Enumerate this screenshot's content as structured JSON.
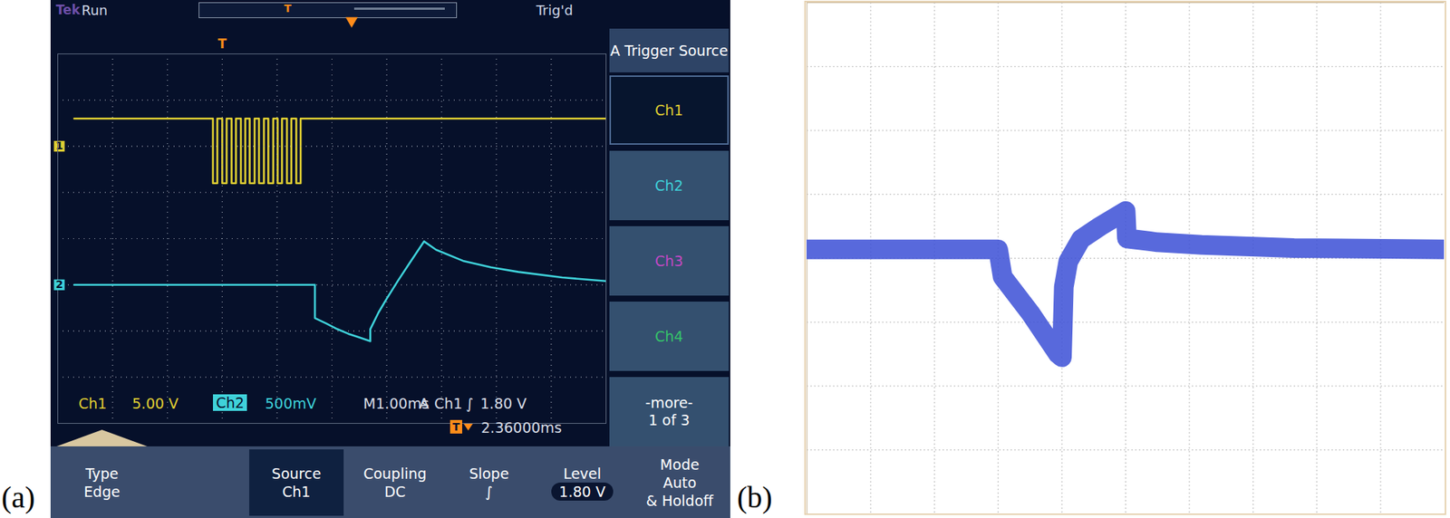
{
  "chart_data": [
    {
      "type": "line",
      "title": "(a)",
      "xlim": [
        -3,
        7
      ],
      "xticks": [
        -3,
        -2,
        -1,
        0,
        1,
        2,
        3,
        4,
        5,
        6,
        7
      ],
      "ylim": [
        -30,
        10
      ],
      "yticks": [
        -30,
        -25,
        -20,
        -15,
        -10,
        -5,
        0,
        5,
        10
      ],
      "grid": true,
      "tick_labels": false,
      "trigger_x": 0,
      "expansion_x": 2.36,
      "series": [
        {
          "name": "1",
          "color": "#e0cf32",
          "x": [
            -2.7,
            -0.17,
            -0.17,
            -0.09,
            -0.09,
            0,
            0,
            0.08,
            0.08,
            0.17,
            0.17,
            0.25,
            0.25,
            0.34,
            0.34,
            0.42,
            0.42,
            0.5,
            0.5,
            0.59,
            0.59,
            0.67,
            0.67,
            0.76,
            0.76,
            0.84,
            0.84,
            0.93,
            0.93,
            1.01,
            1.01,
            1.09,
            1.09,
            1.18,
            1.18,
            1.26,
            1.26,
            1.35,
            1.35,
            1.43,
            1.43,
            7
          ],
          "values": [
            3,
            3,
            -4,
            -4,
            3,
            3,
            -4,
            -4,
            3,
            3,
            -4,
            -4,
            3,
            3,
            -4,
            -4,
            3,
            3,
            -4,
            -4,
            3,
            3,
            -4,
            -4,
            3,
            3,
            -4,
            -4,
            3,
            3,
            -4,
            -4,
            3,
            3,
            -4,
            -4,
            3,
            3,
            -4,
            -4,
            3,
            3
          ]
        }
      ],
      "annotations": {
        "brand": "Tek",
        "state": "Run",
        "trigger_status": "Trig'd",
        "trigger_marker": "T",
        "menu_title": "A Trigger Source",
        "menu_items": [
          "Ch1",
          "Ch2",
          "Ch3",
          "Ch4"
        ],
        "menu_more": [
          "-more-",
          "1 of 3"
        ],
        "readout_ch1": [
          "Ch1",
          "5.00 V"
        ],
        "readout_ch2": [
          "Ch2",
          "500mV"
        ],
        "readout_time": "M1.00ms",
        "readout_trigger": [
          "A",
          "Ch1",
          "∫",
          "1.80 V"
        ],
        "readout_delay": "2.36000ms",
        "buttons": [
          [
            "Type",
            "Edge"
          ],
          [
            "Source",
            "Ch1"
          ],
          [
            "Coupling",
            "DC"
          ],
          [
            "Slope",
            "∫"
          ],
          [
            "Level",
            "1.80 V"
          ],
          [
            "Mode",
            "Auto",
            "& Holdoff"
          ]
        ]
      }
    },
    {
      "type": "line",
      "xlim": [
        -3,
        7
      ],
      "xticks": [
        -3,
        -2,
        -1,
        0,
        1,
        2,
        3,
        4,
        5,
        6,
        7
      ],
      "ylim": [
        -1.5,
        2.5
      ],
      "yticks": [
        -1.5,
        -1,
        -0.5,
        0,
        0.5,
        1,
        1.5,
        2,
        2.5
      ],
      "grid": true,
      "tick_labels": false,
      "series": [
        {
          "name": "2",
          "color": "#3fd2da",
          "x": [
            -2.7,
            1.69,
            1.69,
            1.9,
            2.1,
            2.3,
            2.5,
            2.7,
            2.7,
            2.85,
            3.0,
            3.2,
            3.4,
            3.68,
            3.9,
            4.39,
            4.9,
            5.4,
            6.2,
            7.0
          ],
          "values": [
            0,
            0,
            -0.36,
            -0.42,
            -0.48,
            -0.53,
            -0.57,
            -0.61,
            -0.48,
            -0.3,
            -0.15,
            0.04,
            0.22,
            0.47,
            0.38,
            0.26,
            0.19,
            0.14,
            0.08,
            0.04
          ]
        }
      ]
    },
    {
      "type": "line",
      "title": "(b)",
      "xlim": [
        0,
        10
      ],
      "xticks": [
        0,
        1,
        2,
        3,
        4,
        5,
        6,
        7,
        8,
        9,
        10
      ],
      "ylim": [
        -4,
        4
      ],
      "yticks": [
        -4,
        -3,
        -2,
        -1,
        0,
        1,
        2,
        3,
        4
      ],
      "grid": true,
      "tick_labels": false,
      "series": [
        {
          "color": "#3b4fd6",
          "x": [
            0,
            3.0,
            3.07,
            3.5,
            3.94,
            4.0,
            4.03,
            4.1,
            4.3,
            4.6,
            5.0,
            5.02,
            5.5,
            6.19,
            7.64,
            10
          ],
          "values": [
            0.14,
            0.14,
            -0.29,
            -0.85,
            -1.5,
            -1.55,
            -0.45,
            -0.05,
            0.3,
            0.5,
            0.74,
            0.31,
            0.25,
            0.21,
            0.16,
            0.14
          ]
        }
      ]
    }
  ]
}
